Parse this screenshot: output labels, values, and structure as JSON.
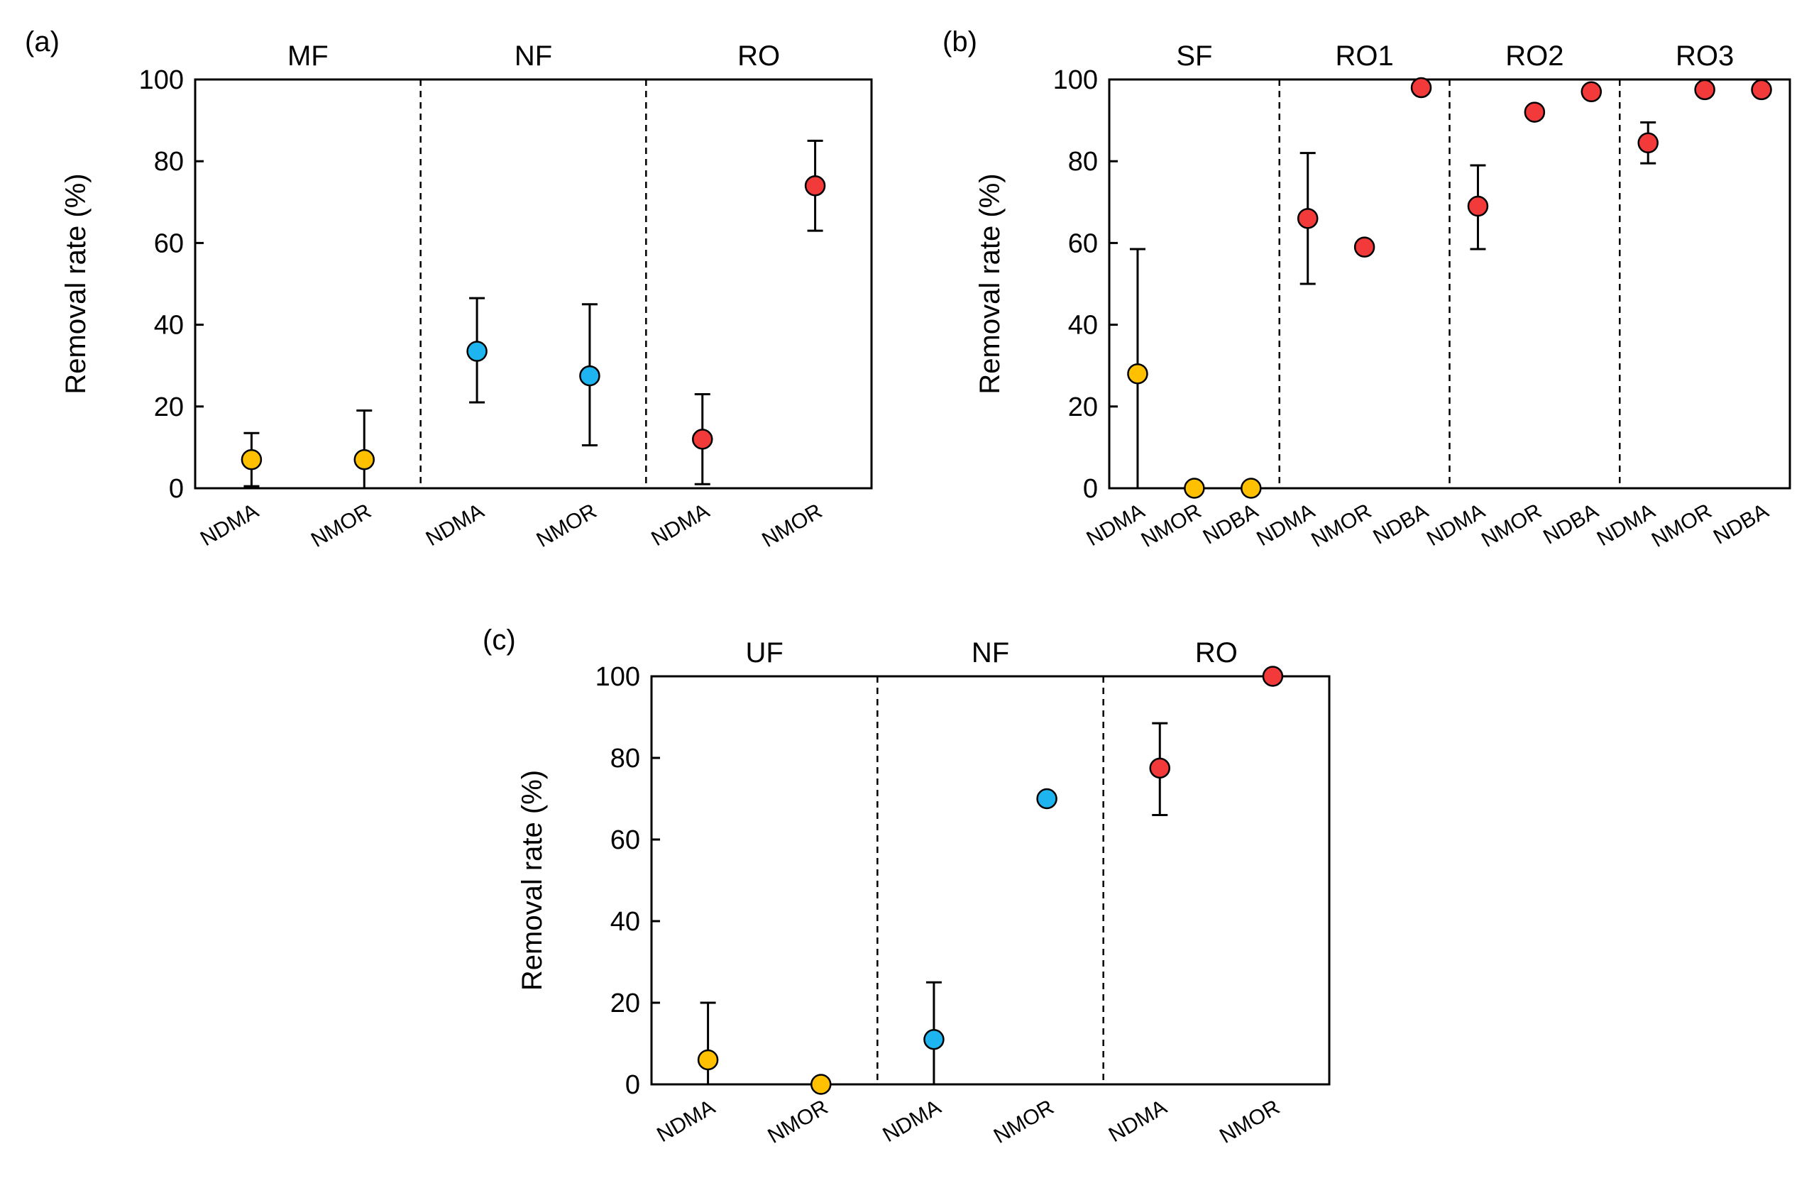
{
  "chart_data": [
    {
      "panel": "(a)",
      "type": "scatter",
      "ylabel": "Removal rate (%)",
      "ylim": [
        0,
        100
      ],
      "yticks": [
        0,
        20,
        40,
        60,
        80,
        100
      ],
      "groups": [
        {
          "name": "MF",
          "color": "#FFC000",
          "categories": [
            "NDMA",
            "NMOR"
          ],
          "values": [
            7,
            7
          ],
          "err_low": [
            6.5,
            7
          ],
          "err_high": [
            6.5,
            12
          ]
        },
        {
          "name": "NF",
          "color": "#1EB4F0",
          "categories": [
            "NDMA",
            "NMOR"
          ],
          "values": [
            33.5,
            27.5
          ],
          "err_low": [
            12.5,
            17
          ],
          "err_high": [
            13,
            17.5
          ]
        },
        {
          "name": "RO",
          "color": "#F23A3A",
          "categories": [
            "NDMA",
            "NMOR"
          ],
          "values": [
            12,
            74
          ],
          "err_low": [
            11,
            11
          ],
          "err_high": [
            11,
            11
          ]
        }
      ]
    },
    {
      "panel": "(b)",
      "type": "scatter",
      "ylabel": "Removal rate (%)",
      "ylim": [
        0,
        100
      ],
      "yticks": [
        0,
        20,
        40,
        60,
        80,
        100
      ],
      "groups": [
        {
          "name": "SF",
          "color": "#FFC000",
          "categories": [
            "NDMA",
            "NMOR",
            "NDBA"
          ],
          "values": [
            28,
            0,
            0
          ],
          "err_low": [
            28,
            0,
            0
          ],
          "err_high": [
            30.5,
            0,
            0
          ]
        },
        {
          "name": "RO1",
          "color": "#F23A3A",
          "categories": [
            "NDMA",
            "NMOR",
            "NDBA"
          ],
          "values": [
            66,
            59,
            98
          ],
          "err_low": [
            16,
            0,
            0
          ],
          "err_high": [
            16,
            0,
            0
          ]
        },
        {
          "name": "RO2",
          "color": "#F23A3A",
          "categories": [
            "NDMA",
            "NMOR",
            "NDBA"
          ],
          "values": [
            69,
            92,
            97
          ],
          "err_low": [
            10.5,
            0,
            0
          ],
          "err_high": [
            10,
            0,
            0
          ]
        },
        {
          "name": "RO3",
          "color": "#F23A3A",
          "categories": [
            "NDMA",
            "NMOR",
            "NDBA"
          ],
          "values": [
            84.5,
            97.5,
            97.5
          ],
          "err_low": [
            5,
            0,
            0
          ],
          "err_high": [
            5,
            0,
            0
          ]
        }
      ]
    },
    {
      "panel": "(c)",
      "type": "scatter",
      "ylabel": "Removal rate (%)",
      "ylim": [
        0,
        100
      ],
      "yticks": [
        0,
        20,
        40,
        60,
        80,
        100
      ],
      "groups": [
        {
          "name": "UF",
          "color": "#FFC000",
          "categories": [
            "NDMA",
            "NMOR"
          ],
          "values": [
            6,
            0
          ],
          "err_low": [
            6,
            0
          ],
          "err_high": [
            14,
            0
          ]
        },
        {
          "name": "NF",
          "color": "#1EB4F0",
          "categories": [
            "NDMA",
            "NMOR"
          ],
          "values": [
            11,
            70
          ],
          "err_low": [
            11,
            0
          ],
          "err_high": [
            14,
            0
          ]
        },
        {
          "name": "RO",
          "color": "#F23A3A",
          "categories": [
            "NDMA",
            "NMOR"
          ],
          "values": [
            77.5,
            100
          ],
          "err_low": [
            11.5,
            0
          ],
          "err_high": [
            11,
            0
          ]
        }
      ]
    }
  ]
}
